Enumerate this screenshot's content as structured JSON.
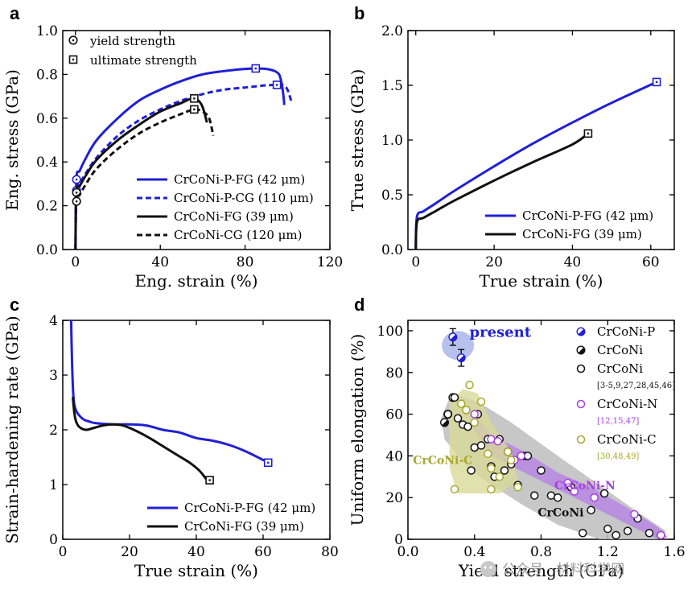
{
  "colors": {
    "blue": "#1f1fd6",
    "black": "#111111",
    "purple": "#a63fe0",
    "olive": "#a8a82a",
    "gray_region": "#bdbdbd",
    "purple_region": "#b67fe6",
    "olive_region": "#dada9a",
    "present_region": "#9aa6e6"
  },
  "watermark": {
    "text": "公众号 · 材料科学网",
    "icon": "wechat-icon"
  },
  "chart_data": [
    {
      "panel": "a",
      "type": "line",
      "xlabel": "Eng. strain (%)",
      "ylabel": "Eng. stress (GPa)",
      "xlim": [
        -6,
        120
      ],
      "ylim": [
        0,
        1.0
      ],
      "xticks": [
        0,
        40,
        80,
        120
      ],
      "yticks": [
        0.0,
        0.2,
        0.4,
        0.6,
        0.8,
        1.0
      ],
      "marker_legend": [
        {
          "label": "yield strength",
          "marker": "circle-dot"
        },
        {
          "label": "ultimate strength",
          "marker": "square-dot"
        }
      ],
      "series": [
        {
          "name": "CrCoNi-P-FG (42 μm)",
          "color": "blue",
          "dash": "solid",
          "x": [
            0,
            0.4,
            2,
            5,
            10,
            20,
            30,
            40,
            50,
            60,
            70,
            80,
            85,
            90,
            94,
            96,
            97,
            98,
            98.5
          ],
          "y": [
            0,
            0.32,
            0.36,
            0.42,
            0.5,
            0.6,
            0.68,
            0.73,
            0.77,
            0.8,
            0.815,
            0.825,
            0.827,
            0.825,
            0.815,
            0.8,
            0.77,
            0.71,
            0.66
          ],
          "yield": [
            0.5,
            0.32
          ],
          "ultimate": [
            85,
            0.827
          ]
        },
        {
          "name": "CrCoNi-P-CG (110 μm)",
          "color": "blue",
          "dash": "dashed",
          "x": [
            0,
            0.4,
            2,
            5,
            10,
            20,
            30,
            40,
            50,
            60,
            70,
            80,
            90,
            95,
            98,
            100,
            102
          ],
          "y": [
            0,
            0.27,
            0.3,
            0.35,
            0.42,
            0.52,
            0.59,
            0.64,
            0.68,
            0.71,
            0.73,
            0.74,
            0.75,
            0.752,
            0.75,
            0.73,
            0.67
          ],
          "yield": [
            0.5,
            0.27
          ],
          "ultimate": [
            95,
            0.752
          ]
        },
        {
          "name": "CrCoNi-FG (39 μm)",
          "color": "black",
          "dash": "solid",
          "x": [
            0,
            0.4,
            2,
            5,
            10,
            20,
            30,
            40,
            50,
            55,
            58,
            60,
            62
          ],
          "y": [
            0,
            0.26,
            0.29,
            0.34,
            0.41,
            0.5,
            0.57,
            0.63,
            0.67,
            0.69,
            0.68,
            0.65,
            0.58
          ],
          "yield": [
            0.5,
            0.26
          ],
          "ultimate": [
            56,
            0.69
          ]
        },
        {
          "name": "CrCoNi-CG (120 μm)",
          "color": "black",
          "dash": "dashed",
          "x": [
            0,
            0.4,
            2,
            5,
            10,
            20,
            30,
            40,
            50,
            56,
            60,
            63,
            65
          ],
          "y": [
            0,
            0.22,
            0.25,
            0.3,
            0.37,
            0.46,
            0.53,
            0.58,
            0.62,
            0.64,
            0.63,
            0.6,
            0.52
          ],
          "yield": [
            0.5,
            0.22
          ],
          "ultimate": [
            56,
            0.64
          ]
        }
      ]
    },
    {
      "panel": "b",
      "type": "line",
      "xlabel": "True strain (%)",
      "ylabel": "True stress (GPa)",
      "xlim": [
        -2,
        66
      ],
      "ylim": [
        0,
        2.0
      ],
      "xticks": [
        0,
        20,
        40,
        60
      ],
      "yticks": [
        0.0,
        0.5,
        1.0,
        1.5,
        2.0
      ],
      "series": [
        {
          "name": "CrCoNi-P-FG (42 μm)",
          "color": "blue",
          "dash": "solid",
          "x": [
            0,
            0.3,
            2,
            5,
            10,
            20,
            30,
            40,
            50,
            61.5
          ],
          "y": [
            0,
            0.3,
            0.35,
            0.42,
            0.54,
            0.76,
            0.97,
            1.16,
            1.34,
            1.53
          ],
          "ultimate": [
            61.5,
            1.53
          ]
        },
        {
          "name": "CrCoNi-FG (39 μm)",
          "color": "black",
          "dash": "solid",
          "x": [
            0,
            0.3,
            2,
            5,
            10,
            20,
            30,
            40,
            44
          ],
          "y": [
            0,
            0.25,
            0.29,
            0.35,
            0.45,
            0.63,
            0.8,
            0.96,
            1.06
          ],
          "ultimate": [
            44,
            1.06
          ]
        }
      ]
    },
    {
      "panel": "c",
      "type": "line",
      "xlabel": "True strain (%)",
      "ylabel": "Strain-hardening rate (GPa)",
      "xlim": [
        0,
        80
      ],
      "ylim": [
        0,
        4
      ],
      "xticks": [
        0,
        20,
        40,
        60,
        80
      ],
      "yticks": [
        0,
        1,
        2,
        3,
        4
      ],
      "series": [
        {
          "name": "CrCoNi-P-FG (42 μm)",
          "color": "blue",
          "dash": "solid",
          "x": [
            2.5,
            2.8,
            3.2,
            4,
            6,
            8,
            10,
            15,
            20,
            25,
            30,
            35,
            40,
            45,
            50,
            55,
            60,
            61.5
          ],
          "y": [
            4.0,
            3.2,
            2.6,
            2.35,
            2.2,
            2.15,
            2.12,
            2.1,
            2.1,
            2.08,
            2.0,
            1.95,
            1.85,
            1.8,
            1.72,
            1.6,
            1.45,
            1.4
          ],
          "ultimate": [
            61.5,
            1.4
          ]
        },
        {
          "name": "CrCoNi-FG (39 μm)",
          "color": "black",
          "dash": "solid",
          "x": [
            3,
            3.5,
            4,
            5,
            7,
            9,
            12,
            15,
            18,
            22,
            26,
            30,
            34,
            38,
            41,
            43,
            44
          ],
          "y": [
            2.6,
            2.3,
            2.15,
            2.05,
            2.0,
            2.03,
            2.08,
            2.1,
            2.08,
            1.98,
            1.85,
            1.7,
            1.55,
            1.4,
            1.25,
            1.1,
            1.08
          ],
          "ultimate": [
            44,
            1.08
          ]
        }
      ]
    },
    {
      "panel": "d",
      "type": "scatter",
      "xlabel": "Yield strength (GPa)",
      "ylabel": "Uniform elongation (%)",
      "xlim": [
        0,
        1.6
      ],
      "ylim": [
        0,
        105
      ],
      "xticks": [
        0.0,
        0.4,
        0.8,
        1.2,
        1.6
      ],
      "yticks": [
        0,
        20,
        40,
        60,
        80,
        100
      ],
      "present_label": "present",
      "region_labels": [
        {
          "text": "CrCoNi-C",
          "color": "olive",
          "x": 0.03,
          "y": 36
        },
        {
          "text": "CrCoNi-N",
          "color": "purple",
          "x": 0.88,
          "y": 24
        },
        {
          "text": "CrCoNi",
          "color": "black",
          "x": 0.78,
          "y": 11
        }
      ],
      "legend": [
        {
          "label": "CrCoNi-P",
          "ref": "",
          "marker": "half-filled-blue",
          "color": "blue"
        },
        {
          "label": "CrCoNi",
          "ref": "",
          "marker": "half-filled-black",
          "color": "black"
        },
        {
          "label": "CrCoNi",
          "ref": "[3-5,9,27,28,45,46]",
          "marker": "open-black",
          "color": "black"
        },
        {
          "label": "CrCoNi-N",
          "ref": "[12,15,47]",
          "marker": "open-purple",
          "color": "purple"
        },
        {
          "label": "CrCoNi-C",
          "ref": "[30,48,49]",
          "marker": "open-olive",
          "color": "olive"
        }
      ],
      "series": [
        {
          "name": "CrCoNi-P",
          "marker": "half-filled-blue",
          "x": [
            0.27,
            0.32
          ],
          "y": [
            97,
            87
          ],
          "yerr": [
            4,
            4
          ]
        },
        {
          "name": "CrCoNi (half-filled)",
          "marker": "half-filled-black",
          "x": [
            0.22,
            0.27,
            0.24
          ],
          "y": [
            56,
            68,
            60
          ]
        },
        {
          "name": "CrCoNi [3-5,9,27,28,45,46]",
          "marker": "open-black",
          "x": [
            0.24,
            0.28,
            0.3,
            0.33,
            0.36,
            0.38,
            0.4,
            0.42,
            0.44,
            0.48,
            0.5,
            0.55,
            0.6,
            0.62,
            0.66,
            0.7,
            0.76,
            0.8,
            0.86,
            0.9,
            0.98,
            1.05,
            1.1,
            1.18,
            1.2,
            1.25,
            1.32,
            1.38,
            1.45,
            1.52,
            0.52,
            0.58,
            0.72
          ],
          "y": [
            60,
            68,
            58,
            55,
            54,
            33,
            44,
            60,
            45,
            48,
            35,
            48,
            42,
            36,
            26,
            40,
            21,
            33,
            21,
            20,
            25,
            3,
            14,
            22,
            5,
            2,
            4,
            10,
            3,
            2,
            30,
            33,
            40
          ]
        },
        {
          "name": "CrCoNi-N [12,15,47]",
          "marker": "open-purple",
          "x": [
            0.4,
            0.5,
            0.54,
            0.64,
            0.68,
            0.96,
            1.0,
            1.12,
            1.36,
            1.52
          ],
          "y": [
            60,
            48,
            47,
            38,
            40,
            27,
            23,
            20,
            12,
            2
          ]
        },
        {
          "name": "CrCoNi-C [30,48,49]",
          "marker": "open-olive",
          "x": [
            0.28,
            0.32,
            0.35,
            0.37,
            0.4,
            0.44,
            0.48,
            0.5,
            0.55,
            0.6,
            0.62,
            0.66,
            0.5
          ],
          "y": [
            24,
            65,
            62,
            74,
            56,
            66,
            41,
            34,
            30,
            42,
            38,
            25,
            24
          ]
        }
      ]
    }
  ]
}
